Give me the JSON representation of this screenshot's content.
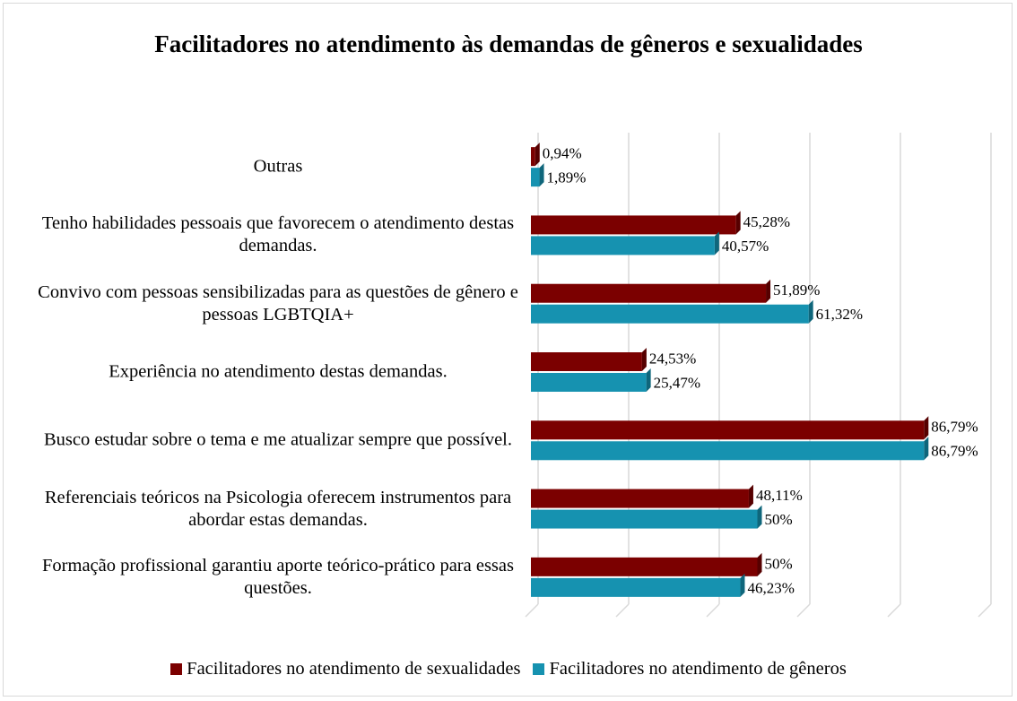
{
  "chart_data": {
    "type": "bar",
    "orientation": "horizontal",
    "title": "Facilitadores no atendimento às demandas de gêneros e sexualidades",
    "categories": [
      "Outras",
      "Tenho habilidades pessoais que favorecem o atendimento destas demandas.",
      "Convivo com pessoas sensibilizadas para as questões de gênero e pessoas LGBTQIA+",
      "Experiência no atendimento destas demandas.",
      "Busco estudar sobre o tema e me atualizar sempre que possível.",
      "Referenciais teóricos na Psicologia oferecem instrumentos para abordar estas demandas.",
      "Formação profissional garantiu aporte teórico-prático para essas questões."
    ],
    "series": [
      {
        "name": "Facilitadores no atendimento de sexualidades",
        "color": "#7b0000",
        "values": [
          0.94,
          45.28,
          51.89,
          24.53,
          86.79,
          48.11,
          50
        ],
        "value_labels": [
          "0,94%",
          "45,28%",
          "51,89%",
          "24,53%",
          "86,79%",
          "48,11%",
          "50%"
        ]
      },
      {
        "name": "Facilitadores no atendimento de gêneros",
        "color": "#1692b0",
        "values": [
          1.89,
          40.57,
          61.32,
          25.47,
          86.79,
          50,
          46.23
        ],
        "value_labels": [
          "1,89%",
          "40,57%",
          "61,32%",
          "25,47%",
          "86,79%",
          "50%",
          "46,23%"
        ]
      }
    ],
    "xlim": [
      0,
      100
    ],
    "xticks": [
      0,
      20,
      40,
      60,
      80,
      100
    ],
    "grid": true,
    "legend": "bottom"
  }
}
